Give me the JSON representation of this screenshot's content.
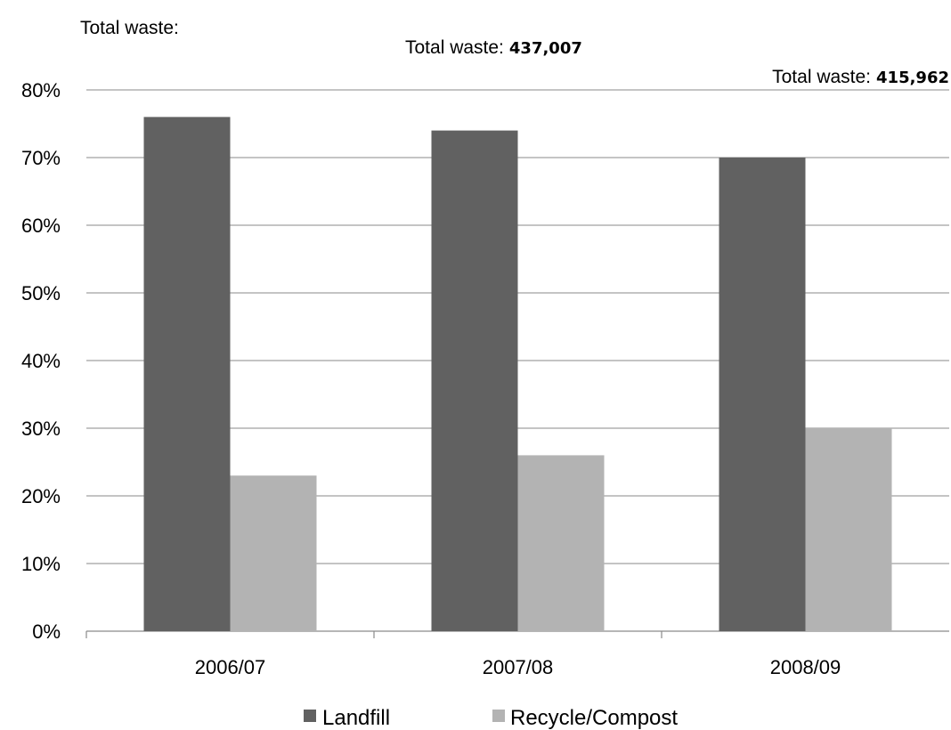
{
  "chart_data": {
    "type": "bar",
    "categories": [
      "2006/07",
      "2007/08",
      "2008/09"
    ],
    "series": [
      {
        "name": "Landfill",
        "values": [
          76,
          74,
          70
        ],
        "color": "#616161"
      },
      {
        "name": "Recycle/Compost",
        "values": [
          23,
          26,
          30
        ],
        "color": "#b3b3b3"
      }
    ],
    "ylim": [
      0,
      80
    ],
    "yticks": [
      "0%",
      "10%",
      "20%",
      "30%",
      "40%",
      "50%",
      "60%",
      "70%",
      "80%"
    ],
    "ytick_values": [
      0,
      10,
      20,
      30,
      40,
      50,
      60,
      70,
      80
    ],
    "grid": true,
    "legend_position": "bottom",
    "annotations": [
      {
        "label": "Total waste:",
        "value": ""
      },
      {
        "label": "Total waste:",
        "value": "437,007"
      },
      {
        "label": "Total waste:",
        "value": "415,962"
      }
    ]
  }
}
